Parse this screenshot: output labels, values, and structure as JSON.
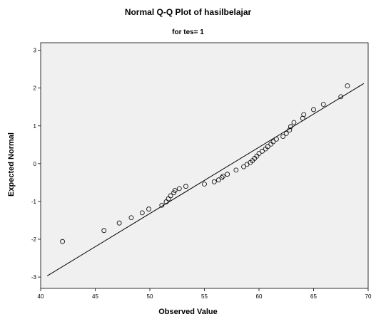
{
  "chart_data": {
    "type": "scatter",
    "title": "Normal Q-Q Plot of hasilbelajar",
    "subtitle": "for tes= 1",
    "xlabel": "Observed Value",
    "ylabel": "Expected Normal",
    "xlim": [
      40,
      70
    ],
    "ylim": [
      -3.3,
      3.2
    ],
    "xticks": [
      "40",
      "45",
      "50",
      "55",
      "60",
      "65",
      "70"
    ],
    "yticks": [
      "-3",
      "-2",
      "-1",
      "0",
      "1",
      "2",
      "3"
    ],
    "grid": false,
    "plot_background": "#f0f0f0",
    "marker": "open-circle",
    "reference_line": {
      "x": [
        40.6,
        69.6
      ],
      "y": [
        -2.97,
        2.12
      ]
    },
    "points": [
      {
        "x": 42.0,
        "y": -2.06
      },
      {
        "x": 45.8,
        "y": -1.77
      },
      {
        "x": 47.2,
        "y": -1.57
      },
      {
        "x": 48.3,
        "y": -1.43
      },
      {
        "x": 49.3,
        "y": -1.3
      },
      {
        "x": 49.9,
        "y": -1.2
      },
      {
        "x": 51.1,
        "y": -1.1
      },
      {
        "x": 51.5,
        "y": -1.01
      },
      {
        "x": 51.7,
        "y": -0.93
      },
      {
        "x": 51.9,
        "y": -0.85
      },
      {
        "x": 52.2,
        "y": -0.77
      },
      {
        "x": 52.3,
        "y": -0.71
      },
      {
        "x": 52.7,
        "y": -0.66
      },
      {
        "x": 53.3,
        "y": -0.6
      },
      {
        "x": 55.0,
        "y": -0.54
      },
      {
        "x": 55.9,
        "y": -0.48
      },
      {
        "x": 56.3,
        "y": -0.43
      },
      {
        "x": 56.6,
        "y": -0.37
      },
      {
        "x": 56.7,
        "y": -0.33
      },
      {
        "x": 57.1,
        "y": -0.28
      },
      {
        "x": 57.9,
        "y": -0.17
      },
      {
        "x": 58.6,
        "y": -0.08
      },
      {
        "x": 58.9,
        "y": -0.02
      },
      {
        "x": 59.2,
        "y": 0.03
      },
      {
        "x": 59.4,
        "y": 0.08
      },
      {
        "x": 59.6,
        "y": 0.14
      },
      {
        "x": 59.8,
        "y": 0.2
      },
      {
        "x": 60.0,
        "y": 0.27
      },
      {
        "x": 60.3,
        "y": 0.33
      },
      {
        "x": 60.6,
        "y": 0.39
      },
      {
        "x": 60.8,
        "y": 0.45
      },
      {
        "x": 61.1,
        "y": 0.52
      },
      {
        "x": 61.3,
        "y": 0.58
      },
      {
        "x": 61.6,
        "y": 0.65
      },
      {
        "x": 62.2,
        "y": 0.72
      },
      {
        "x": 62.5,
        "y": 0.8
      },
      {
        "x": 62.8,
        "y": 0.89
      },
      {
        "x": 62.9,
        "y": 0.98
      },
      {
        "x": 63.2,
        "y": 1.09
      },
      {
        "x": 64.0,
        "y": 1.2
      },
      {
        "x": 64.1,
        "y": 1.3
      },
      {
        "x": 65.0,
        "y": 1.43
      },
      {
        "x": 65.9,
        "y": 1.57
      },
      {
        "x": 67.5,
        "y": 1.77
      },
      {
        "x": 68.1,
        "y": 2.06
      }
    ]
  }
}
